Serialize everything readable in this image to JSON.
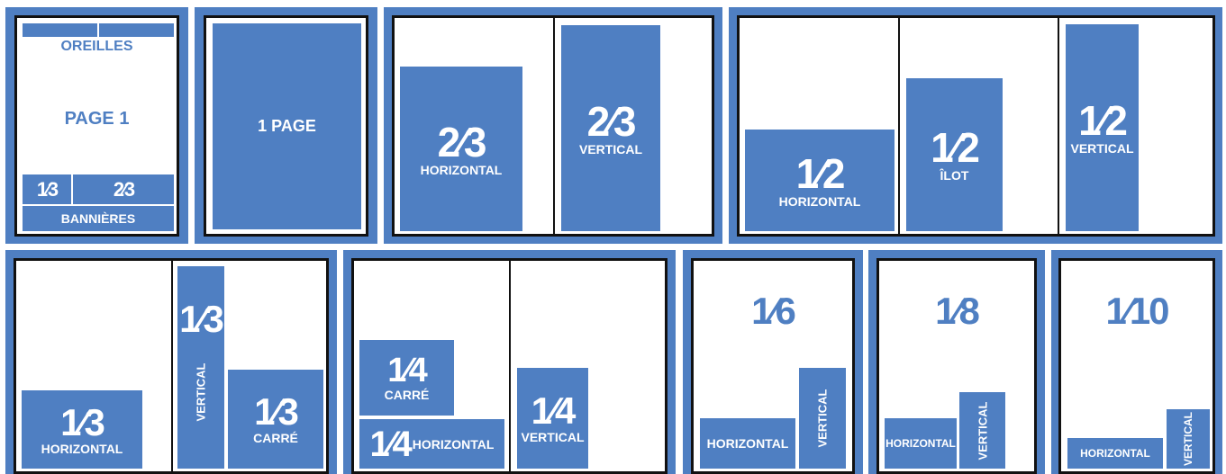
{
  "colors": {
    "brand": "#4f7fc2",
    "border": "#111111",
    "paper": "#ffffff"
  },
  "diagram": {
    "p1": {
      "top_label": "OREILLES",
      "center_label": "PAGE 1",
      "third": "1⁄3",
      "two_thirds": "2⁄3",
      "bottom_label": "BANNIÈRES"
    },
    "p2": {
      "label": "1 PAGE"
    },
    "p3": {
      "h_frac": "2⁄3",
      "h_label": "HORIZONTAL",
      "v_frac": "2⁄3",
      "v_label": "VERTICAL"
    },
    "p4": {
      "h_frac": "1⁄2",
      "h_label": "HORIZONTAL",
      "i_frac": "1⁄2",
      "i_label": "ÎLOT",
      "v_frac": "1⁄2",
      "v_label": "VERTICAL"
    },
    "p5": {
      "h_frac": "1⁄3",
      "h_label": "HORIZONTAL",
      "v_frac": "1⁄3",
      "v_label": "VERTICAL",
      "c_frac": "1⁄3",
      "c_label": "CARRÉ"
    },
    "p6": {
      "c_frac": "1⁄4",
      "c_label": "CARRÉ",
      "h_frac": "1⁄4",
      "h_label": "HORIZONTAL",
      "v_frac": "1⁄4",
      "v_label": "VERTICAL"
    },
    "p7": {
      "frac": "1⁄6",
      "h_label": "HORIZONTAL",
      "v_label": "VERTICAL"
    },
    "p8": {
      "frac": "1⁄8",
      "h_label": "HORIZONTAL",
      "v_label": "VERTICAL"
    },
    "p9": {
      "frac": "1⁄10",
      "h_label": "HORIZONTAL",
      "v_label": "VERTICAL"
    }
  }
}
